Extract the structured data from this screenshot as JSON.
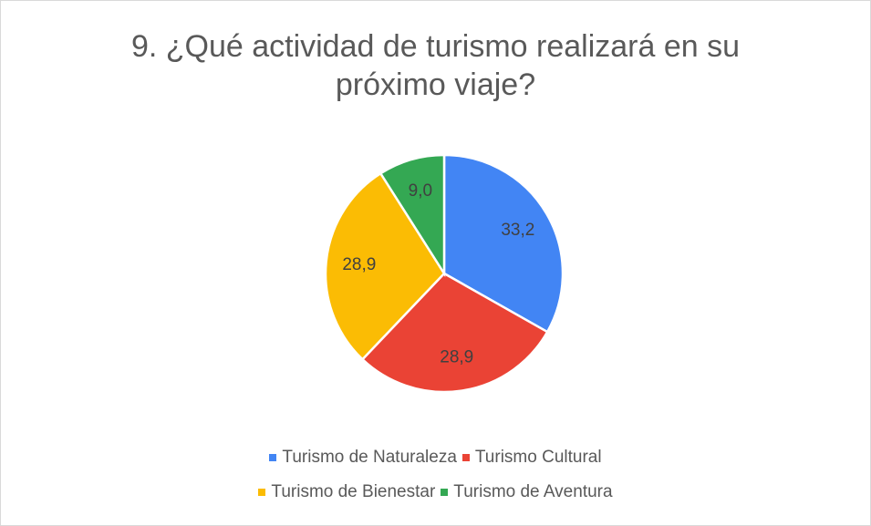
{
  "chart_data": {
    "type": "pie",
    "title": "9. ¿Qué actividad de turismo realizará en su próximo viaje?",
    "categories": [
      "Turismo de Naturaleza",
      "Turismo Cultural",
      "Turismo de Bienestar",
      "Turismo de Aventura"
    ],
    "values": [
      33.2,
      28.9,
      28.9,
      9.0
    ],
    "value_labels": [
      "33,2",
      "28,9",
      "28,9",
      "9,0"
    ],
    "colors": [
      "#4285f4",
      "#ea4335",
      "#fbbc04",
      "#34a853"
    ],
    "legend": "bottom"
  }
}
